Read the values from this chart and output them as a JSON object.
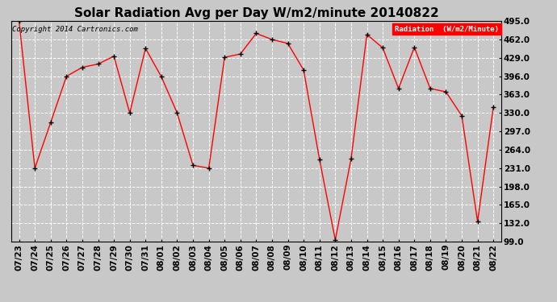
{
  "title": "Solar Radiation Avg per Day W/m2/minute 20140822",
  "copyright_text": "Copyright 2014 Cartronics.com",
  "legend_label": "Radiation  (W/m2/Minute)",
  "dates": [
    "07/23",
    "07/24",
    "07/25",
    "07/26",
    "07/27",
    "07/28",
    "07/29",
    "07/30",
    "07/31",
    "08/01",
    "08/02",
    "08/03",
    "08/04",
    "08/05",
    "08/06",
    "08/07",
    "08/08",
    "08/09",
    "08/10",
    "08/11",
    "08/12",
    "08/13",
    "08/14",
    "08/15",
    "08/16",
    "08/17",
    "08/18",
    "08/19",
    "08/20",
    "08/21",
    "08/22"
  ],
  "values": [
    495.0,
    231.0,
    313.0,
    396.0,
    412.0,
    418.0,
    432.0,
    330.0,
    446.0,
    395.0,
    330.0,
    236.0,
    231.0,
    430.0,
    436.0,
    473.0,
    462.0,
    455.0,
    407.0,
    247.0,
    102.0,
    248.0,
    471.0,
    447.0,
    374.0,
    448.0,
    374.0,
    368.0,
    325.0,
    135.0,
    341.0
  ],
  "ylim": [
    99.0,
    495.0
  ],
  "yticks": [
    99.0,
    132.0,
    165.0,
    198.0,
    231.0,
    264.0,
    297.0,
    330.0,
    363.0,
    396.0,
    429.0,
    462.0,
    495.0
  ],
  "line_color": "red",
  "marker_color": "black",
  "bg_color": "#c8c8c8",
  "plot_bg_color": "#c8c8c8",
  "grid_color": "white",
  "title_fontsize": 11,
  "tick_fontsize": 7.5,
  "legend_bg_color": "red",
  "legend_text_color": "white"
}
